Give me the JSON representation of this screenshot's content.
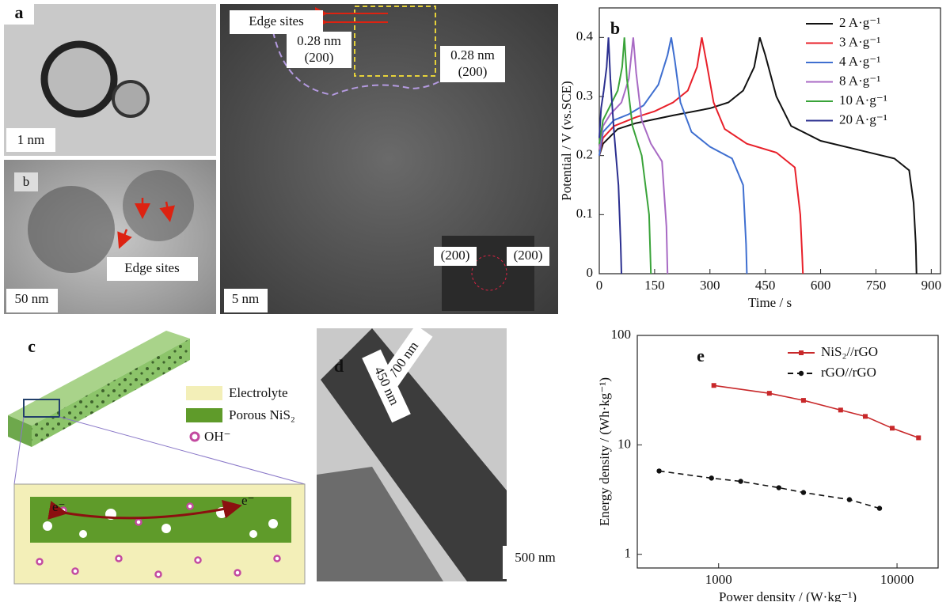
{
  "panel_a": {
    "label": "a",
    "sub_label": "b",
    "scale_1": "1 nm",
    "scale_2": "50 nm",
    "scale_3": "5 nm",
    "edge_sites_1": "Edge sites",
    "edge_sites_2": "Edge sites",
    "d_spacing_1": "0.28 nm",
    "plane_1": "(200)",
    "d_spacing_2": "0.28 nm",
    "plane_2": "(200)",
    "fft_1": "(200)",
    "fft_2": "(200)"
  },
  "panel_c": {
    "label": "c",
    "legend": [
      "Electrolyte",
      "Porous NiS₂",
      "OH⁻"
    ],
    "electron_left": "e⁻",
    "electron_right": "e⁻"
  },
  "panel_d": {
    "label": "d",
    "length": "700 nm",
    "width": "450 nm",
    "scale": "500 nm"
  },
  "chart_data": [
    {
      "type": "line",
      "panel_label": "b",
      "x_label": "Time / s",
      "y_label": "Potential / V (vs.SCE)",
      "xlim": [
        0,
        925
      ],
      "ylim": [
        0,
        0.45
      ],
      "xticks": [
        0,
        150,
        300,
        450,
        600,
        750,
        900
      ],
      "yticks": [
        0,
        0.1,
        0.2,
        0.3,
        0.4
      ],
      "legend": "upper right",
      "series": [
        {
          "name": "2 A·g⁻¹",
          "color": "#111111",
          "x": [
            0,
            10,
            50,
            100,
            200,
            300,
            350,
            390,
            420,
            435,
            450,
            480,
            520,
            600,
            700,
            800,
            840,
            852,
            858,
            860
          ],
          "values": [
            0.2,
            0.22,
            0.245,
            0.255,
            0.268,
            0.28,
            0.29,
            0.31,
            0.35,
            0.4,
            0.37,
            0.3,
            0.25,
            0.225,
            0.21,
            0.195,
            0.175,
            0.12,
            0.05,
            0
          ]
        },
        {
          "name": "3 A·g⁻¹",
          "color": "#e8202a",
          "x": [
            0,
            10,
            40,
            100,
            150,
            200,
            240,
            265,
            278,
            290,
            310,
            340,
            400,
            480,
            530,
            545,
            550,
            552
          ],
          "values": [
            0.2,
            0.23,
            0.25,
            0.265,
            0.275,
            0.29,
            0.31,
            0.35,
            0.4,
            0.36,
            0.29,
            0.245,
            0.22,
            0.205,
            0.18,
            0.1,
            0.03,
            0
          ]
        },
        {
          "name": "4 A·g⁻¹",
          "color": "#3f6fd0",
          "x": [
            0,
            10,
            40,
            80,
            120,
            160,
            185,
            195,
            205,
            220,
            250,
            300,
            360,
            390,
            398,
            400
          ],
          "values": [
            0.2,
            0.24,
            0.26,
            0.27,
            0.285,
            0.32,
            0.37,
            0.4,
            0.36,
            0.29,
            0.24,
            0.215,
            0.195,
            0.15,
            0.05,
            0
          ]
        },
        {
          "name": "8 A·g⁻¹",
          "color": "#a86ac4",
          "x": [
            0,
            10,
            30,
            60,
            80,
            92,
            100,
            115,
            140,
            170,
            182,
            185
          ],
          "values": [
            0.21,
            0.25,
            0.27,
            0.29,
            0.33,
            0.4,
            0.34,
            0.26,
            0.22,
            0.19,
            0.08,
            0
          ]
        },
        {
          "name": "10 A·g⁻¹",
          "color": "#39a339",
          "x": [
            0,
            10,
            30,
            50,
            62,
            68,
            75,
            90,
            115,
            135,
            140
          ],
          "values": [
            0.22,
            0.26,
            0.285,
            0.31,
            0.35,
            0.4,
            0.33,
            0.25,
            0.2,
            0.1,
            0
          ]
        },
        {
          "name": "20 A·g⁻¹",
          "color": "#2b2f8f",
          "x": [
            0,
            5,
            12,
            20,
            25,
            30,
            40,
            52,
            58,
            60
          ],
          "values": [
            0.23,
            0.28,
            0.31,
            0.35,
            0.4,
            0.33,
            0.24,
            0.15,
            0.05,
            0
          ]
        }
      ]
    },
    {
      "type": "line",
      "panel_label": "e",
      "x_label": "Power density / (W·kg⁻¹)",
      "y_label": "Energy density / (Wh·kg⁻¹)",
      "xlog": true,
      "ylog": true,
      "xlim": [
        350,
        17000
      ],
      "ylim": [
        0.75,
        100
      ],
      "xticks": [
        1000,
        10000
      ],
      "yticks": [
        1,
        10,
        100
      ],
      "legend": "upper right",
      "series": [
        {
          "name": "NiS₂//rGO",
          "color": "#c8282a",
          "linestyle": "solid",
          "marker": "square",
          "x": [
            940,
            1925,
            2990,
            4830,
            6640,
            9400,
            13200
          ],
          "values": [
            34.9,
            29.6,
            25.5,
            20.8,
            18.2,
            14.2,
            11.6
          ]
        },
        {
          "name": "rGO//rGO",
          "color": "#111111",
          "linestyle": "dashed",
          "marker": "circle",
          "x": [
            464,
            912,
            1330,
            2175,
            2990,
            5410,
            7980
          ],
          "values": [
            5.77,
            4.97,
            4.64,
            4.06,
            3.67,
            3.16,
            2.63
          ]
        }
      ]
    }
  ]
}
